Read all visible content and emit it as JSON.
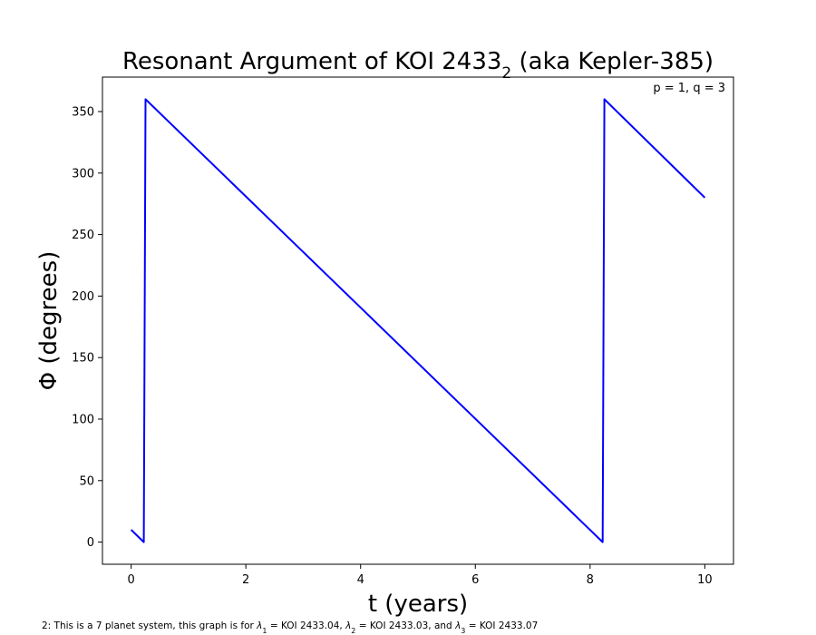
{
  "chart_data": {
    "type": "line",
    "title": {
      "prefix": "Resonant Argument of KOI 2433",
      "subscript": "2",
      "suffix": " (aka Kepler-385)"
    },
    "xlabel": "t (years)",
    "ylabel": "Φ (degrees)",
    "xlim": [
      -0.5,
      10.5
    ],
    "ylim": [
      -18,
      378
    ],
    "xticks": [
      0,
      2,
      4,
      6,
      8,
      10
    ],
    "yticks": [
      0,
      50,
      100,
      150,
      200,
      250,
      300,
      350
    ],
    "grid": false,
    "annotation": "p = 1, q = 3",
    "series": [
      {
        "color": "#0000ff",
        "x": [
          0,
          0.22,
          0.22,
          0.25,
          8.22,
          8.22,
          8.25,
          10
        ],
        "y": [
          10,
          0,
          0,
          360,
          0,
          0,
          360,
          280
        ]
      }
    ]
  },
  "footnote": {
    "segments": [
      {
        "text": "2: This is a 7 planet system, this graph is for "
      },
      {
        "text": "λ",
        "italic": true
      },
      {
        "text": "1",
        "sub": true
      },
      {
        "text": " = KOI 2433.04, "
      },
      {
        "text": "λ",
        "italic": true
      },
      {
        "text": "2",
        "sub": true
      },
      {
        "text": " = KOI 2433.03, and "
      },
      {
        "text": "λ",
        "italic": true
      },
      {
        "text": "3",
        "sub": true
      },
      {
        "text": " = KOI 2433.07"
      }
    ]
  }
}
